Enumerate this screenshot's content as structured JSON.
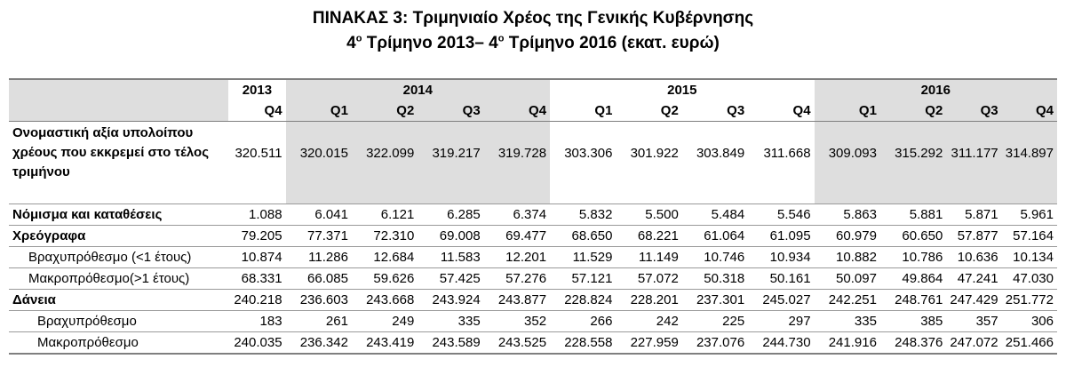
{
  "title": {
    "line1": "ΠΙΝΑΚΑΣ 3: Τριμηνιαίο Χρέος της Γενικής Κυβέρνησης",
    "line2_pre1": "4",
    "line2_sup1": "ο",
    "line2_mid": " Τρίμηνο 2013– 4",
    "line2_sup2": "ο",
    "line2_post": " Τρίμηνο 2016 (εκατ. ευρώ)"
  },
  "years": [
    "2013",
    "2014",
    "2015",
    "2016"
  ],
  "quarters": [
    "Q4",
    "Q1",
    "Q2",
    "Q3",
    "Q4",
    "Q1",
    "Q2",
    "Q3",
    "Q4",
    "Q1",
    "Q2",
    "Q3",
    "Q4"
  ],
  "rows": [
    {
      "label": "Ονομαστική αξία υπολοίπου χρέους που εκκρεμεί στο τέλος τριμήνου",
      "values": [
        "320.511",
        "320.015",
        "322.099",
        "319.217",
        "319.728",
        "303.306",
        "301.922",
        "303.849",
        "311.668",
        "309.093",
        "315.292",
        "311.177",
        "314.897"
      ]
    },
    {
      "label": "Νόμισμα και καταθέσεις",
      "values": [
        "1.088",
        "6.041",
        "6.121",
        "6.285",
        "6.374",
        "5.832",
        "5.500",
        "5.484",
        "5.546",
        "5.863",
        "5.881",
        "5.871",
        "5.961"
      ]
    },
    {
      "label": "Χρεόγραφα",
      "values": [
        "79.205",
        "77.371",
        "72.310",
        "69.008",
        "69.477",
        "68.650",
        "68.221",
        "61.064",
        "61.095",
        "60.979",
        "60.650",
        "57.877",
        "57.164"
      ]
    },
    {
      "label": "Βραχυπρόθεσμο (<1 έτους)",
      "values": [
        "10.874",
        "11.286",
        "12.684",
        "11.583",
        "12.201",
        "11.529",
        "11.149",
        "10.746",
        "10.934",
        "10.882",
        "10.786",
        "10.636",
        "10.134"
      ]
    },
    {
      "label": "Μακροπρόθεσμο(>1 έτους)",
      "values": [
        "68.331",
        "66.085",
        "59.626",
        "57.425",
        "57.276",
        "57.121",
        "57.072",
        "50.318",
        "50.161",
        "50.097",
        "49.864",
        "47.241",
        "47.030"
      ]
    },
    {
      "label": "Δάνεια",
      "values": [
        "240.218",
        "236.603",
        "243.668",
        "243.924",
        "243.877",
        "228.824",
        "228.201",
        "237.301",
        "245.027",
        "242.251",
        "248.761",
        "247.429",
        "251.772"
      ]
    },
    {
      "label": "Βραχυπρόθεσμο",
      "values": [
        "183",
        "261",
        "249",
        "335",
        "352",
        "266",
        "242",
        "225",
        "297",
        "335",
        "385",
        "357",
        "306"
      ]
    },
    {
      "label": "Μακροπρόθεσμο",
      "values": [
        "240.035",
        "236.342",
        "243.419",
        "243.589",
        "243.525",
        "228.558",
        "227.959",
        "237.076",
        "244.730",
        "241.916",
        "248.376",
        "247.072",
        "251.466"
      ]
    }
  ]
}
